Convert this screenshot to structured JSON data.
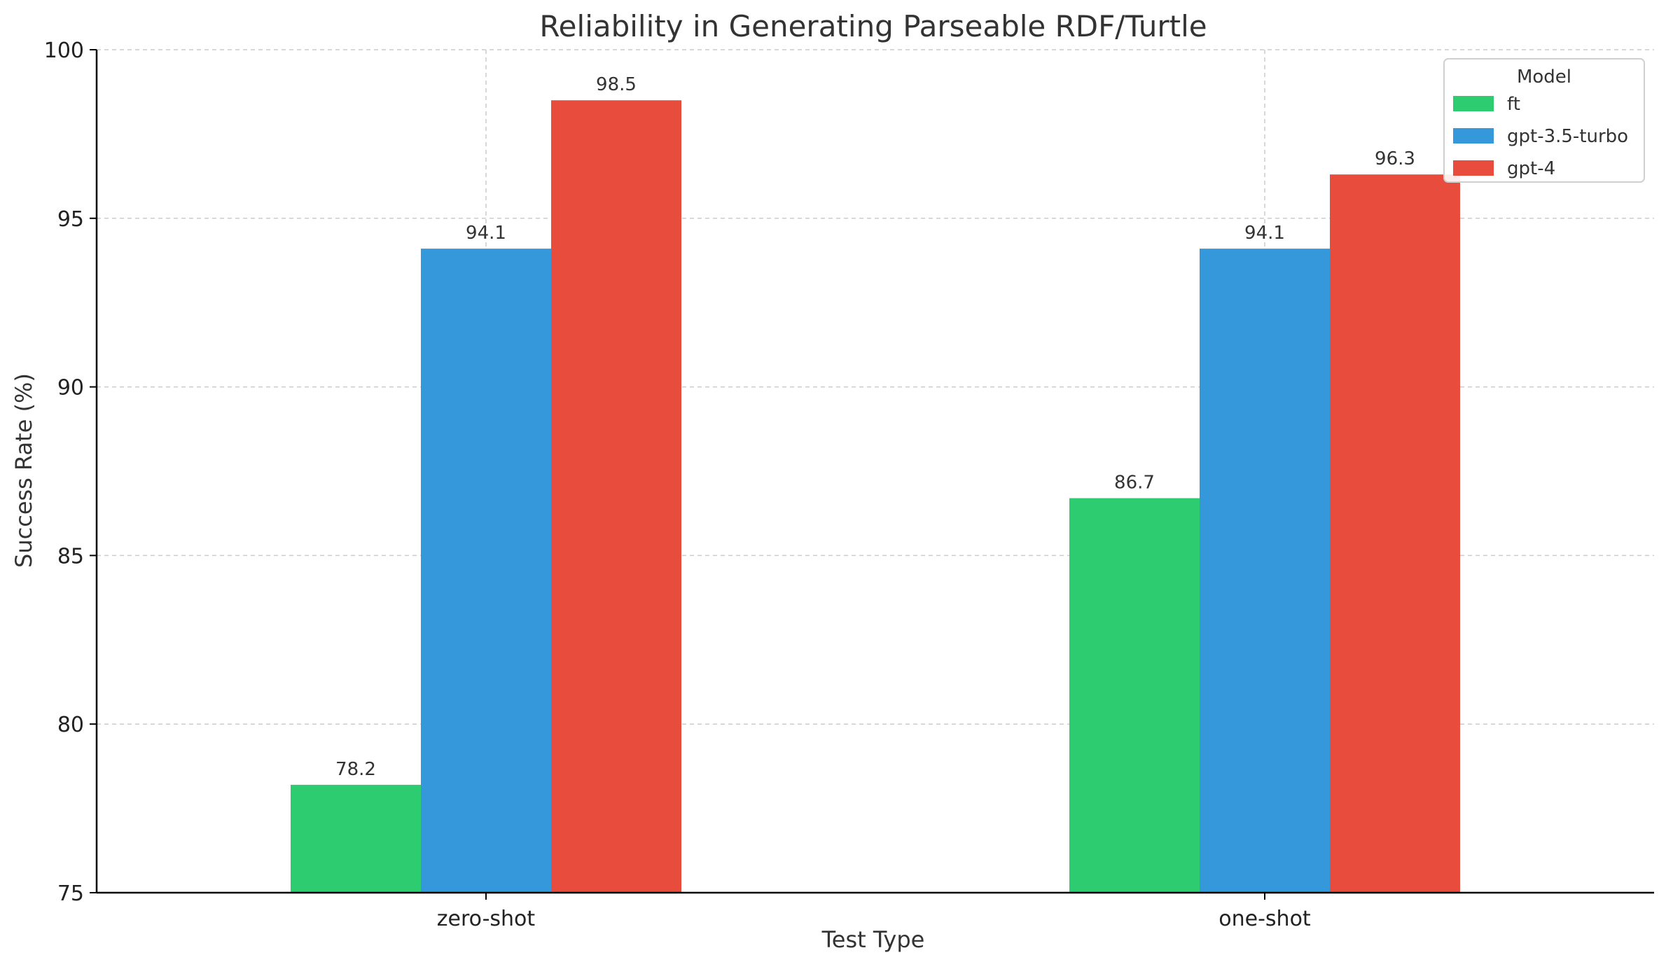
{
  "chart_data": {
    "type": "bar",
    "title": "Reliability in Generating Parseable RDF/Turtle",
    "xlabel": "Test Type",
    "ylabel": "Success Rate (%)",
    "categories": [
      "zero-shot",
      "one-shot"
    ],
    "series": [
      {
        "name": "ft",
        "values": [
          78.2,
          86.7
        ],
        "color": "#2ecc71"
      },
      {
        "name": "gpt-3.5-turbo",
        "values": [
          94.1,
          94.1
        ],
        "color": "#3498db"
      },
      {
        "name": "gpt-4",
        "values": [
          98.5,
          96.3
        ],
        "color": "#e74c3c"
      }
    ],
    "data_labels": [
      [
        "78.2",
        "86.7"
      ],
      [
        "94.1",
        "94.1"
      ],
      [
        "98.5",
        "96.3"
      ]
    ],
    "ylim": [
      75,
      100
    ],
    "yticks": [
      75,
      80,
      85,
      90,
      95,
      100
    ],
    "ytick_labels": [
      "75",
      "80",
      "85",
      "90",
      "95",
      "100"
    ],
    "grid": true,
    "legend": {
      "title": "Model",
      "placement": "top-right"
    }
  }
}
